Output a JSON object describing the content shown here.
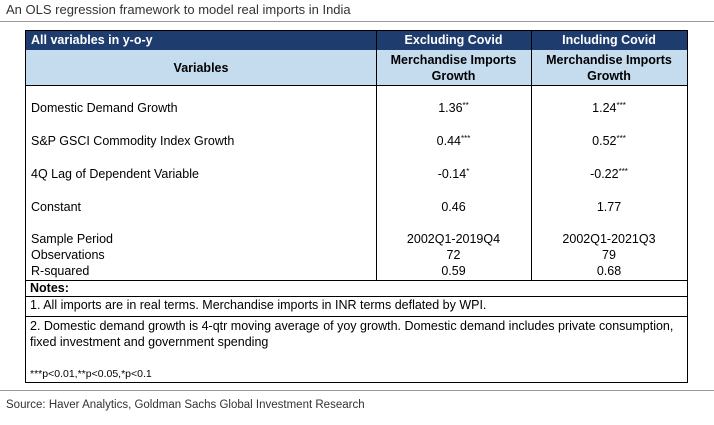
{
  "title": "An OLS regression framework to model real imports in India",
  "table": {
    "header_row1": {
      "label": "All variables in y-o-y",
      "col1": "Excluding Covid",
      "col2": "Including Covid"
    },
    "header_row2": {
      "label": "Variables",
      "col1": "Merchandise Imports Growth",
      "col2": "Merchandise Imports Growth"
    },
    "rows": [
      {
        "label": "Domestic Demand Growth",
        "v1": "1.36",
        "v1_sig": "**",
        "v2": "1.24",
        "v2_sig": "***"
      },
      {
        "label": "S&P GSCI Commodity Index Growth",
        "v1": "0.44",
        "v1_sig": "***",
        "v2": "0.52",
        "v2_sig": "***"
      },
      {
        "label": "4Q Lag of Dependent Variable",
        "v1": "-0.14",
        "v1_sig": "*",
        "v2": "-0.22",
        "v2_sig": "***"
      },
      {
        "label": "Constant",
        "v1": "0.46",
        "v1_sig": "",
        "v2": "1.77",
        "v2_sig": ""
      }
    ],
    "stats": [
      {
        "label": "Sample Period",
        "v1": "2002Q1-2019Q4",
        "v2": "2002Q1-2021Q3"
      },
      {
        "label": "Observations",
        "v1": "72",
        "v2": "79"
      },
      {
        "label": "R-squared",
        "v1": "0.59",
        "v2": "0.68"
      }
    ],
    "notes_title": "Notes:",
    "notes": [
      "1. All imports are in real terms. Merchandise imports in INR terms deflated by WPI.",
      "2. Domestic demand growth is 4-qtr moving average of yoy growth. Domestic demand includes private consumption, fixed investment and government spending"
    ],
    "significance": "***p<0.01,**p<0.05,*p<0.1"
  },
  "source": "Source: Haver Analytics, Goldman Sachs Global Investment Research",
  "colors": {
    "header_dark": "#1f3c6e",
    "header_light": "#c5dcef"
  }
}
